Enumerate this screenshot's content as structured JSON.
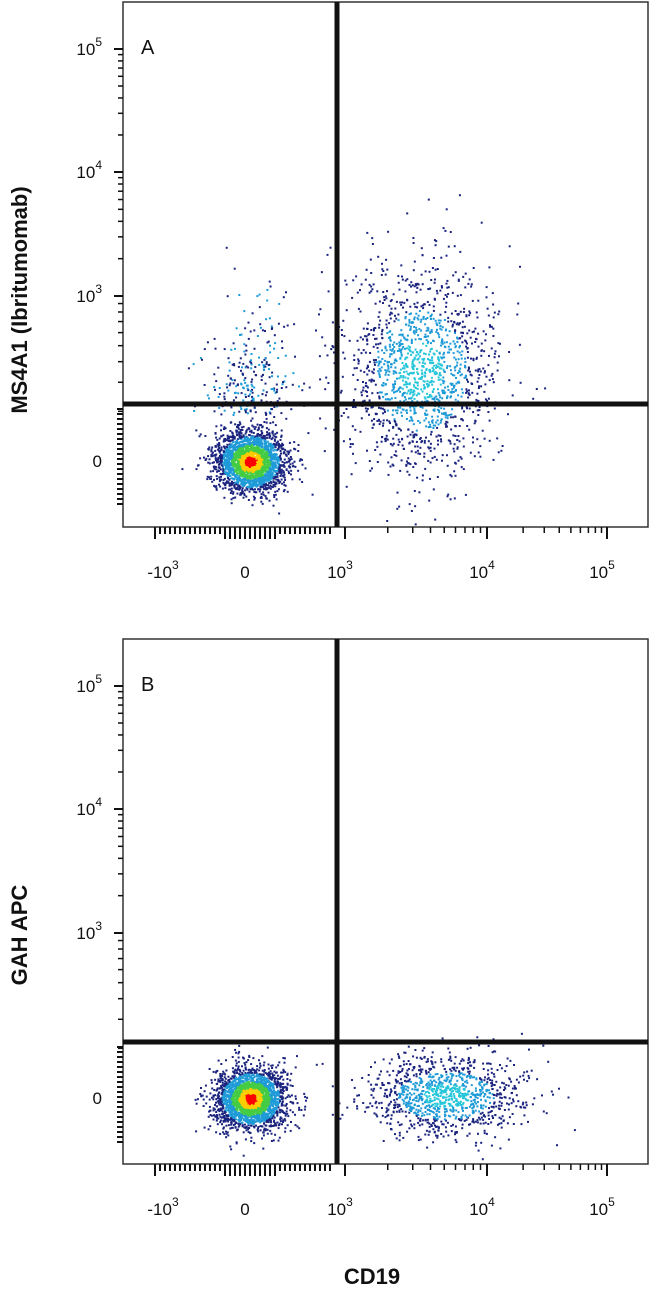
{
  "chart_data": [
    {
      "type": "scatter",
      "panel_label": "A",
      "ylabel": "MS4A1 (Ibritumomab)",
      "xlabel": "",
      "x_scale": "biexponential",
      "y_scale": "biexponential",
      "x_ticks": [
        {
          "base": "-10",
          "exp": "3"
        },
        {
          "base": "0",
          "exp": ""
        },
        {
          "base": "10",
          "exp": "3"
        },
        {
          "base": "10",
          "exp": "4"
        },
        {
          "base": "10",
          "exp": "5"
        }
      ],
      "y_ticks": [
        {
          "base": "0",
          "exp": ""
        },
        {
          "base": "10",
          "exp": "3"
        },
        {
          "base": "10",
          "exp": "4"
        },
        {
          "base": "10",
          "exp": "5"
        }
      ],
      "quadrant_gate": {
        "x": 1000,
        "y": 300
      },
      "populations": [
        {
          "name": "",
          "x_center": 0,
          "y_center": 0,
          "spread": "dense",
          "density": "high",
          "colors": [
            "#ff0000",
            "#ffcc00",
            "#44cc44",
            "#1e9bd7",
            "#1a237e"
          ]
        },
        {
          "name": "",
          "x_center": 3500,
          "y_center": 400,
          "spread": "wide",
          "density": "medium",
          "colors": [
            "#1e9bd7",
            "#1a237e",
            "#26c6da"
          ]
        }
      ],
      "grid": false
    },
    {
      "type": "scatter",
      "panel_label": "B",
      "ylabel": "GAH APC",
      "xlabel": "CD19",
      "x_scale": "biexponential",
      "y_scale": "biexponential",
      "x_ticks": [
        {
          "base": "-10",
          "exp": "3"
        },
        {
          "base": "0",
          "exp": ""
        },
        {
          "base": "10",
          "exp": "3"
        },
        {
          "base": "10",
          "exp": "4"
        },
        {
          "base": "10",
          "exp": "5"
        }
      ],
      "y_ticks": [
        {
          "base": "0",
          "exp": ""
        },
        {
          "base": "10",
          "exp": "3"
        },
        {
          "base": "10",
          "exp": "4"
        },
        {
          "base": "10",
          "exp": "5"
        }
      ],
      "quadrant_gate": {
        "x": 1000,
        "y": 300
      },
      "populations": [
        {
          "name": "",
          "x_center": 0,
          "y_center": 0,
          "spread": "dense",
          "density": "high",
          "colors": [
            "#ff0000",
            "#ffcc00",
            "#44cc44",
            "#1e9bd7",
            "#1a237e"
          ]
        },
        {
          "name": "",
          "x_center": 6000,
          "y_center": 0,
          "spread": "wide",
          "density": "medium",
          "colors": [
            "#1e9bd7",
            "#1a237e",
            "#26c6da"
          ]
        }
      ],
      "grid": false
    }
  ]
}
